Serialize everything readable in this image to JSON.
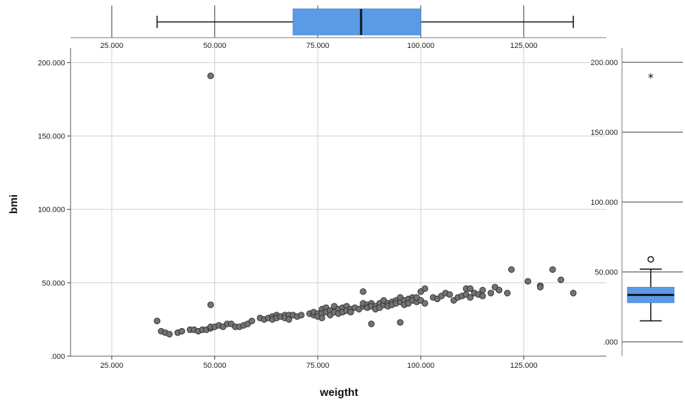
{
  "chart_data": {
    "type": "scatter",
    "title": "",
    "xlabel": "weigtht",
    "ylabel": "bmi",
    "xlim": [
      15,
      145
    ],
    "ylim": [
      0,
      210
    ],
    "x_ticks": [
      25,
      50,
      75,
      100,
      125
    ],
    "x_tick_labels": [
      "25.000",
      "50.000",
      "75.000",
      "100.000",
      "125.000"
    ],
    "y_ticks": [
      0,
      50,
      100,
      150,
      200
    ],
    "y_tick_labels": [
      ".000",
      "50.000",
      "100.000",
      "150.000",
      "200.000"
    ],
    "grid": true,
    "point_color": "#737373",
    "box_color": "#5b9be6",
    "points": [
      [
        36,
        24
      ],
      [
        37,
        17
      ],
      [
        38,
        16
      ],
      [
        39,
        15
      ],
      [
        41,
        16
      ],
      [
        42,
        17
      ],
      [
        44,
        18
      ],
      [
        45,
        18
      ],
      [
        46,
        17
      ],
      [
        47,
        18
      ],
      [
        48,
        18
      ],
      [
        49,
        19
      ],
      [
        49,
        20
      ],
      [
        50,
        20
      ],
      [
        51,
        21
      ],
      [
        52,
        20
      ],
      [
        53,
        22
      ],
      [
        54,
        22
      ],
      [
        55,
        20
      ],
      [
        56,
        20
      ],
      [
        57,
        21
      ],
      [
        58,
        22
      ],
      [
        59,
        24
      ],
      [
        61,
        26
      ],
      [
        62,
        25
      ],
      [
        63,
        26
      ],
      [
        64,
        27
      ],
      [
        64,
        25
      ],
      [
        65,
        28
      ],
      [
        65,
        26
      ],
      [
        66,
        27
      ],
      [
        67,
        28
      ],
      [
        67,
        26
      ],
      [
        68,
        28
      ],
      [
        68,
        25
      ],
      [
        69,
        28
      ],
      [
        70,
        27
      ],
      [
        71,
        28
      ],
      [
        73,
        29
      ],
      [
        74,
        28
      ],
      [
        74,
        30
      ],
      [
        75,
        29
      ],
      [
        75,
        27
      ],
      [
        76,
        32
      ],
      [
        76,
        29
      ],
      [
        76,
        26
      ],
      [
        77,
        33
      ],
      [
        77,
        30
      ],
      [
        78,
        31
      ],
      [
        78,
        28
      ],
      [
        79,
        34
      ],
      [
        79,
        30
      ],
      [
        80,
        32
      ],
      [
        80,
        29
      ],
      [
        81,
        33
      ],
      [
        81,
        30
      ],
      [
        82,
        34
      ],
      [
        82,
        31
      ],
      [
        83,
        32
      ],
      [
        83,
        30
      ],
      [
        84,
        33
      ],
      [
        85,
        32
      ],
      [
        86,
        34
      ],
      [
        86,
        36
      ],
      [
        87,
        35
      ],
      [
        87,
        33
      ],
      [
        88,
        36
      ],
      [
        88,
        34
      ],
      [
        89,
        34
      ],
      [
        89,
        32
      ],
      [
        90,
        36
      ],
      [
        90,
        33
      ],
      [
        91,
        35
      ],
      [
        91,
        38
      ],
      [
        92,
        36
      ],
      [
        92,
        34
      ],
      [
        93,
        37
      ],
      [
        93,
        35
      ],
      [
        94,
        38
      ],
      [
        94,
        36
      ],
      [
        95,
        37
      ],
      [
        95,
        40
      ],
      [
        96,
        38
      ],
      [
        96,
        35
      ],
      [
        97,
        39
      ],
      [
        97,
        36
      ],
      [
        98,
        40
      ],
      [
        98,
        38
      ],
      [
        99,
        37
      ],
      [
        99,
        40
      ],
      [
        100,
        38
      ],
      [
        100,
        44
      ],
      [
        101,
        36
      ],
      [
        101,
        46
      ],
      [
        103,
        40
      ],
      [
        104,
        39
      ],
      [
        105,
        41
      ],
      [
        106,
        43
      ],
      [
        107,
        42
      ],
      [
        108,
        38
      ],
      [
        109,
        40
      ],
      [
        110,
        41
      ],
      [
        111,
        42
      ],
      [
        111,
        46
      ],
      [
        112,
        46
      ],
      [
        112,
        40
      ],
      [
        113,
        43
      ],
      [
        114,
        42
      ],
      [
        115,
        45
      ],
      [
        115,
        41
      ],
      [
        117,
        43
      ],
      [
        118,
        47
      ],
      [
        119,
        45
      ],
      [
        121,
        43
      ],
      [
        122,
        59
      ],
      [
        126,
        51
      ],
      [
        129,
        48
      ],
      [
        129,
        47
      ],
      [
        132,
        59
      ],
      [
        134,
        52
      ],
      [
        137,
        43
      ],
      [
        49,
        191
      ],
      [
        49,
        35
      ],
      [
        88,
        22
      ],
      [
        95,
        23
      ],
      [
        86,
        44
      ]
    ],
    "x_box": {
      "min": 36,
      "q1": 69,
      "median": 85.5,
      "q3": 100,
      "max": 137
    },
    "y_box": {
      "min": 15,
      "q1": 28,
      "median": 33.5,
      "q3": 39,
      "max": 52,
      "outliers": [
        59
      ],
      "extremes": [
        190
      ]
    }
  }
}
